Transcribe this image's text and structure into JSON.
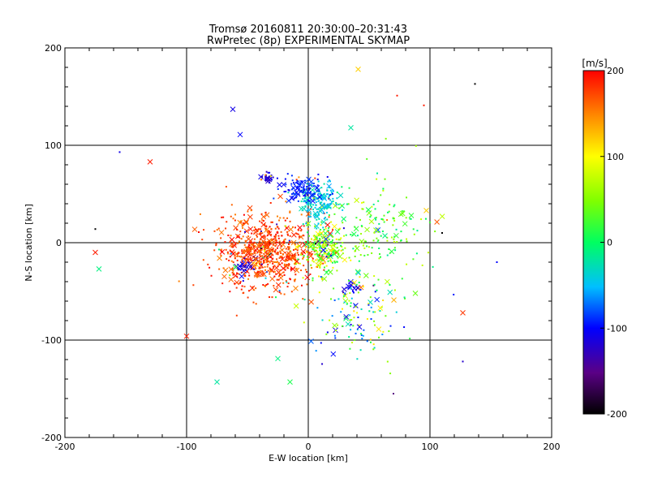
{
  "chart_data": {
    "type": "scatter",
    "title": "Tromsø 20160811 20:30:00–20:31:43",
    "subtitle": "RwPretec (8p) EXPERIMENTAL SKYMAP",
    "xlabel": "E-W location [km]",
    "ylabel": "N-S location [km]",
    "xlim": [
      -200,
      200
    ],
    "ylim": [
      -200,
      200
    ],
    "x_ticks": [
      -200,
      -100,
      0,
      100,
      200
    ],
    "y_ticks": [
      -200,
      -100,
      0,
      100,
      200
    ],
    "grid": true,
    "colorbar": {
      "label": "[m/s]",
      "range": [
        -200,
        200
      ],
      "ticks": [
        200,
        100,
        0,
        -100,
        -200
      ],
      "colormap": "rainbow: black (-200) → purple → blue → cyan → green (0) → yellow → orange → red (200)"
    },
    "marker_types": [
      "dot",
      "cross"
    ],
    "clusters": [
      {
        "description": "west-southwest red cluster",
        "center": [
          -35,
          -10
        ],
        "spread": [
          35,
          32
        ],
        "velocity_range": [
          150,
          200
        ],
        "approx_points": 700
      },
      {
        "description": "central mixed cluster",
        "center": [
          12,
          -5
        ],
        "spread": [
          14,
          22
        ],
        "velocity_range": [
          0,
          120
        ],
        "approx_points": 220
      },
      {
        "description": "northern cyan column",
        "center": [
          10,
          40
        ],
        "spread": [
          12,
          16
        ],
        "velocity_range": [
          -60,
          -20
        ],
        "approx_points": 150
      },
      {
        "description": "northern blue cluster",
        "center": [
          -5,
          55
        ],
        "spread": [
          14,
          12
        ],
        "velocity_range": [
          -110,
          -80
        ],
        "approx_points": 120
      },
      {
        "description": "north-west blue blob",
        "center": [
          -33,
          68
        ],
        "spread": [
          5,
          5
        ],
        "velocity_range": [
          -130,
          -100
        ],
        "approx_points": 25
      },
      {
        "description": "south-west blue blob",
        "center": [
          -52,
          -25
        ],
        "spread": [
          6,
          6
        ],
        "velocity_range": [
          -130,
          -100
        ],
        "approx_points": 25
      },
      {
        "description": "south-east blue blob",
        "center": [
          35,
          -45
        ],
        "spread": [
          5,
          5
        ],
        "velocity_range": [
          -130,
          -100
        ],
        "approx_points": 22
      },
      {
        "description": "eastern green/yellow scatter",
        "center": [
          55,
          10
        ],
        "spread": [
          40,
          45
        ],
        "velocity_range": [
          -20,
          80
        ],
        "approx_points": 180
      },
      {
        "description": "south-east sparse scatter",
        "center": [
          40,
          -80
        ],
        "spread": [
          35,
          35
        ],
        "velocity_range": [
          -120,
          120
        ],
        "approx_points": 120
      }
    ],
    "outliers": [
      {
        "x": 41,
        "y": 178,
        "v": 120,
        "marker": "cross"
      },
      {
        "x": -130,
        "y": 83,
        "v": 190,
        "marker": "cross"
      },
      {
        "x": -62,
        "y": 137,
        "v": -110,
        "marker": "cross"
      },
      {
        "x": -56,
        "y": 111,
        "v": -100,
        "marker": "cross"
      },
      {
        "x": 137,
        "y": 163,
        "v": -200,
        "marker": "dot"
      },
      {
        "x": 95,
        "y": 141,
        "v": 190,
        "marker": "dot"
      },
      {
        "x": 73,
        "y": 151,
        "v": 190,
        "marker": "dot"
      },
      {
        "x": 35,
        "y": 118,
        "v": -20,
        "marker": "cross"
      },
      {
        "x": -175,
        "y": -10,
        "v": 190,
        "marker": "cross"
      },
      {
        "x": -172,
        "y": -27,
        "v": -10,
        "marker": "cross"
      },
      {
        "x": -175,
        "y": 14,
        "v": -200,
        "marker": "dot"
      },
      {
        "x": -155,
        "y": 93,
        "v": -110,
        "marker": "dot"
      },
      {
        "x": -75,
        "y": -143,
        "v": -20,
        "marker": "cross"
      },
      {
        "x": -15,
        "y": -143,
        "v": 10,
        "marker": "cross"
      },
      {
        "x": -25,
        "y": -119,
        "v": -10,
        "marker": "cross"
      },
      {
        "x": -100,
        "y": -96,
        "v": 190,
        "marker": "cross"
      },
      {
        "x": 127,
        "y": -72,
        "v": 180,
        "marker": "cross"
      },
      {
        "x": 127,
        "y": -122,
        "v": -120,
        "marker": "dot"
      },
      {
        "x": 155,
        "y": -20,
        "v": -100,
        "marker": "dot"
      },
      {
        "x": 70,
        "y": -155,
        "v": -150,
        "marker": "dot"
      },
      {
        "x": 97,
        "y": 33,
        "v": 120,
        "marker": "cross"
      },
      {
        "x": 110,
        "y": 10,
        "v": -200,
        "marker": "dot"
      },
      {
        "x": 88,
        "y": -52,
        "v": 40,
        "marker": "cross"
      }
    ]
  }
}
